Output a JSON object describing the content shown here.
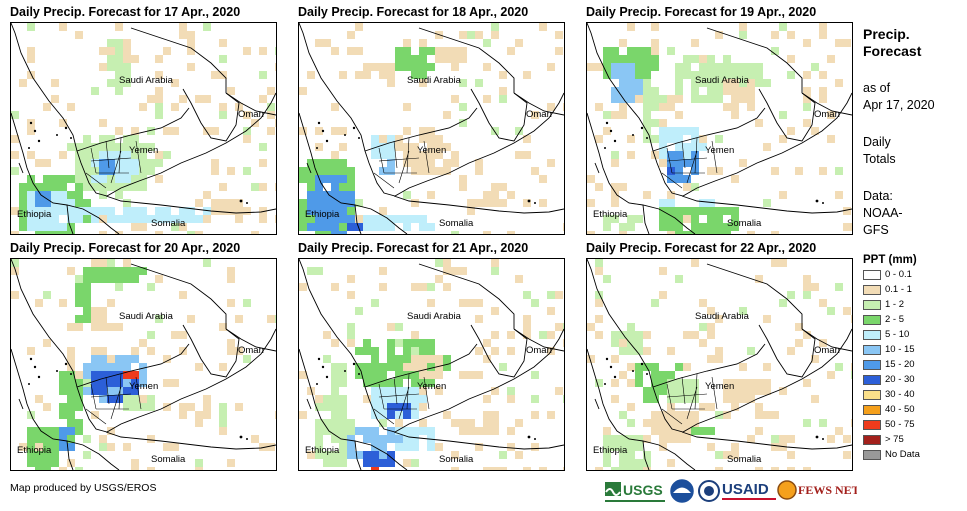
{
  "panels": [
    {
      "title": "Daily Precip. Forecast for 17 Apr., 2020"
    },
    {
      "title": "Daily Precip. Forecast for 18 Apr., 2020"
    },
    {
      "title": "Daily Precip. Forecast for 19 Apr., 2020"
    },
    {
      "title": "Daily Precip. Forecast for 20 Apr., 2020"
    },
    {
      "title": "Daily Precip. Forecast for 21 Apr., 2020"
    },
    {
      "title": "Daily Precip. Forecast for 22 Apr., 2020"
    }
  ],
  "map_labels": {
    "saudi": "Saudi Arabia",
    "oman": "Oman",
    "yemen": "Yemen",
    "ethiopia": "Ethiopia",
    "somalia": "Somalia"
  },
  "sidebar": {
    "title_line1": "Precip.",
    "title_line2": "Forecast",
    "asof_line1": "as of",
    "asof_line2": "Apr 17, 2020",
    "daily_line1": "Daily",
    "daily_line2": "Totals",
    "data_line1": "Data:",
    "data_line2": "NOAA-",
    "data_line3": "GFS"
  },
  "legend": {
    "title": "PPT (mm)",
    "items": [
      {
        "label": "0 - 0.1",
        "color": "#ffffff"
      },
      {
        "label": "0.1 - 1",
        "color": "#f2dcb6"
      },
      {
        "label": "1 - 2",
        "color": "#c6efb1"
      },
      {
        "label": "2 - 5",
        "color": "#7ad66b"
      },
      {
        "label": "5 - 10",
        "color": "#bfeefb"
      },
      {
        "label": "10 - 15",
        "color": "#8ac6f4"
      },
      {
        "label": "15 - 20",
        "color": "#4f9ae8"
      },
      {
        "label": "20 - 30",
        "color": "#2c5fd8"
      },
      {
        "label": "30 - 40",
        "color": "#fbe08a"
      },
      {
        "label": "40 - 50",
        "color": "#f5a01c"
      },
      {
        "label": "50 - 75",
        "color": "#ee3b1c"
      },
      {
        "label": "> 75",
        "color": "#a3201c"
      },
      {
        "label": "No Data",
        "color": "#999999"
      }
    ]
  },
  "credit": "Map produced by USGS/EROS",
  "logos": {
    "usgs": "USGS",
    "usaid": "USAID",
    "fewsnet": "FEWS NET"
  }
}
